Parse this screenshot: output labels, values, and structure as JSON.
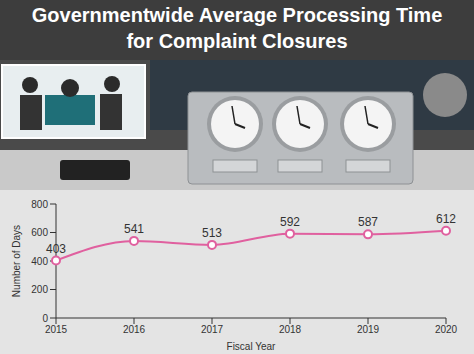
{
  "chart_data": {
    "type": "line",
    "title": "Governmentwide Average Processing Time for Complaint Closures",
    "x_label": "Fiscal Year",
    "y_label": "Number of Days",
    "categories": [
      "2015",
      "2016",
      "2017",
      "2018",
      "2019",
      "2020"
    ],
    "values": [
      403,
      541,
      513,
      592,
      587,
      612
    ],
    "color": "#e0609f",
    "marker": "circle",
    "data_labels": true,
    "ylim": [
      0,
      800
    ],
    "yticks": [
      0,
      200,
      400,
      600,
      800
    ],
    "grid": false
  }
}
